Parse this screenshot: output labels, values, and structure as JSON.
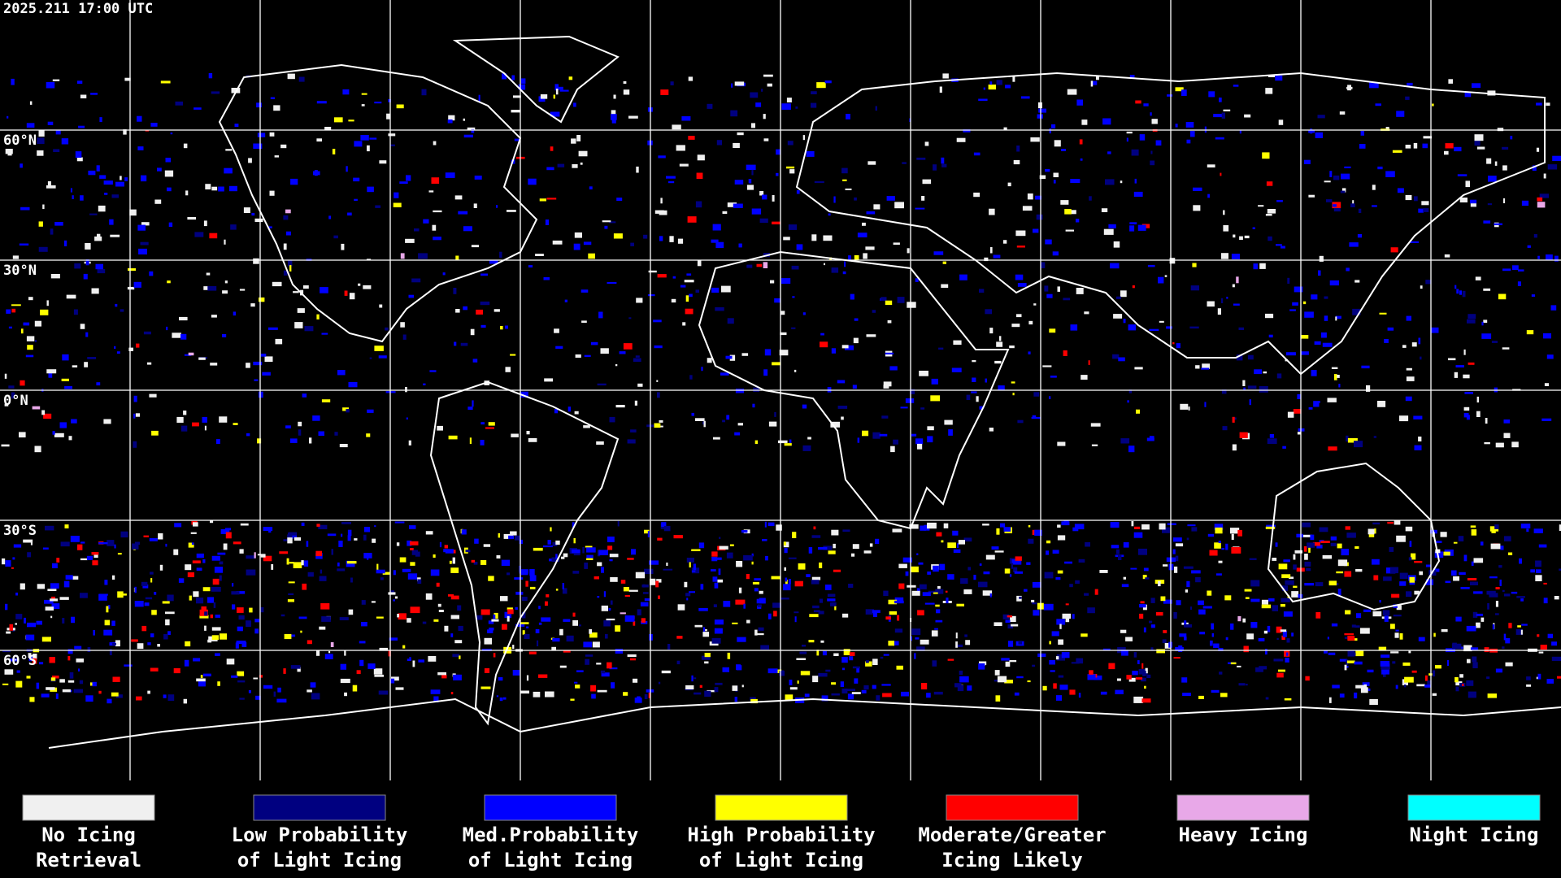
{
  "header": {
    "timestamp": "2025.211 17:00 UTC"
  },
  "lat_labels": [
    "60°N",
    "30°N",
    "0°N",
    "30°S",
    "60°S"
  ],
  "legend": {
    "items": [
      {
        "label": [
          "No Icing",
          "Retrieval"
        ],
        "color": "#f0f0f0"
      },
      {
        "label": [
          "Low Probability",
          "of Light Icing"
        ],
        "color": "#000080"
      },
      {
        "label": [
          "Med.Probability",
          "of Light Icing"
        ],
        "color": "#0000ff"
      },
      {
        "label": [
          "High Probability",
          "of Light Icing"
        ],
        "color": "#ffff00"
      },
      {
        "label": [
          "Moderate/Greater",
          "Icing Likely"
        ],
        "color": "#ff0000"
      },
      {
        "label": [
          "Heavy Icing"
        ],
        "color": "#e8a8e8"
      },
      {
        "label": [
          "Night Icing"
        ],
        "color": "#00ffff"
      }
    ]
  }
}
